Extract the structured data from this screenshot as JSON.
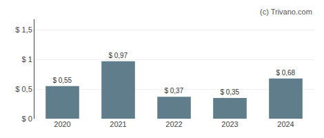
{
  "chart_data": {
    "type": "bar",
    "categories": [
      "2020",
      "2021",
      "2022",
      "2023",
      "2024"
    ],
    "values": [
      0.55,
      0.97,
      0.37,
      0.35,
      0.68
    ],
    "value_labels": [
      "$ 0,55",
      "$ 0,97",
      "$ 0,37",
      "$ 0,35",
      "$ 0,68"
    ],
    "data_labels": true,
    "color": "#5f7d8b",
    "ylim": [
      0,
      1.68
    ],
    "yticks": [
      {
        "value": 0,
        "label": "$ 0"
      },
      {
        "value": 0.5,
        "label": "$ 0,5"
      },
      {
        "value": 1.0,
        "label": "$ 1"
      },
      {
        "value": 1.5,
        "label": "$ 1,5"
      }
    ],
    "grid": true,
    "annotations": [
      "(c) Trivano.com"
    ]
  }
}
